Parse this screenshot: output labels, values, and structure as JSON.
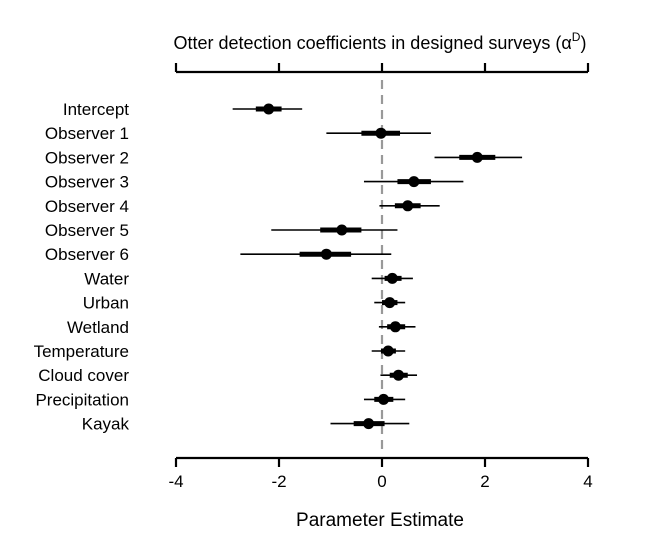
{
  "chart_data": {
    "type": "forest",
    "title_text": "Otter detection coefficients in designed surveys (",
    "title_symbol": "α",
    "title_superscript": "D",
    "title_close": ")",
    "xlabel": "Parameter Estimate",
    "xlim": [
      -4,
      4
    ],
    "xticks": [
      -4,
      -2,
      0,
      2,
      4
    ],
    "xtick_labels": [
      "-4",
      "-2",
      "0",
      "2",
      "4"
    ],
    "reference_line": 0,
    "colors": {
      "marks": "#000000",
      "reference": "#999999"
    },
    "categories": [
      "Intercept",
      "Observer 1",
      "Observer 2",
      "Observer 3",
      "Observer 4",
      "Observer 5",
      "Observer 6",
      "Water",
      "Urban",
      "Wetland",
      "Temperature",
      "Cloud cover",
      "Precipitation",
      "Kayak"
    ],
    "estimates": [
      -2.2,
      -0.02,
      1.85,
      0.62,
      0.5,
      -0.78,
      -1.08,
      0.2,
      0.15,
      0.26,
      0.12,
      0.32,
      0.03,
      -0.26
    ],
    "inner_interval": [
      [
        -2.45,
        -1.95
      ],
      [
        -0.4,
        0.35
      ],
      [
        1.5,
        2.2
      ],
      [
        0.3,
        0.95
      ],
      [
        0.25,
        0.75
      ],
      [
        -1.2,
        -0.4
      ],
      [
        -1.6,
        -0.6
      ],
      [
        0.05,
        0.38
      ],
      [
        0.0,
        0.3
      ],
      [
        0.1,
        0.45
      ],
      [
        -0.02,
        0.27
      ],
      [
        0.15,
        0.5
      ],
      [
        -0.15,
        0.22
      ],
      [
        -0.55,
        0.05
      ]
    ],
    "outer_interval": [
      [
        -2.9,
        -1.55
      ],
      [
        -1.08,
        0.95
      ],
      [
        1.02,
        2.72
      ],
      [
        -0.35,
        1.58
      ],
      [
        -0.05,
        1.12
      ],
      [
        -2.15,
        0.3
      ],
      [
        -2.75,
        0.18
      ],
      [
        -0.2,
        0.6
      ],
      [
        -0.15,
        0.45
      ],
      [
        -0.06,
        0.65
      ],
      [
        -0.2,
        0.45
      ],
      [
        -0.03,
        0.68
      ],
      [
        -0.35,
        0.45
      ],
      [
        -1.0,
        0.53
      ]
    ]
  }
}
